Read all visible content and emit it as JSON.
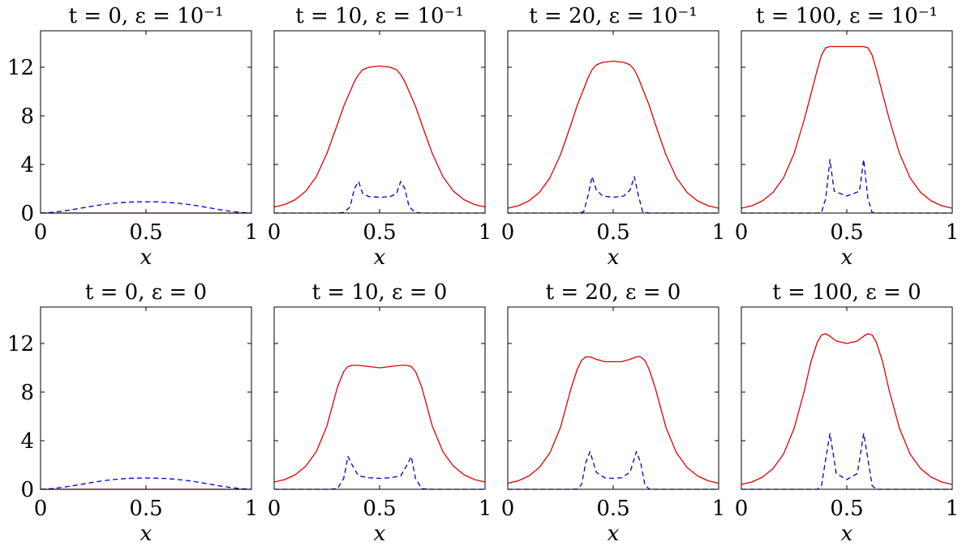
{
  "colors": {
    "solid": "#e00000",
    "dashed": "#0000cc",
    "axes": "#000000",
    "background": "#ffffff"
  },
  "figure": {
    "ylim": [
      0,
      15
    ],
    "xlim": [
      0,
      1
    ],
    "yticks": [
      0,
      4,
      8,
      12
    ],
    "ytick_labels": [
      "0",
      "4",
      "8",
      "12"
    ],
    "xticks": [
      0,
      0.5,
      1
    ],
    "xtick_labels": [
      "0",
      "0.5",
      "1"
    ],
    "xlabel": "x"
  },
  "chart_data": [
    {
      "type": "line",
      "title": "t = 0,  ε = 10⁻¹",
      "xlabel": "x",
      "ylabel": "",
      "xlim": [
        0,
        1
      ],
      "ylim": [
        0,
        15
      ],
      "x": [
        0.0,
        0.05,
        0.1,
        0.15,
        0.2,
        0.25,
        0.3,
        0.35,
        0.4,
        0.45,
        0.5,
        0.55,
        0.6,
        0.65,
        0.7,
        0.75,
        0.8,
        0.85,
        0.9,
        0.95,
        1.0
      ],
      "series": [
        {
          "style": "solid",
          "values": [
            0.0,
            0.0,
            0.0,
            0.0,
            0.0,
            0.0,
            0.0,
            0.0,
            0.0,
            0.0,
            0.0,
            0.0,
            0.0,
            0.0,
            0.0,
            0.0,
            0.0,
            0.0,
            0.0,
            0.0,
            0.0
          ]
        },
        {
          "style": "dashed",
          "values": [
            0.0,
            0.05,
            0.15,
            0.28,
            0.43,
            0.58,
            0.71,
            0.81,
            0.88,
            0.92,
            0.93,
            0.92,
            0.88,
            0.81,
            0.71,
            0.58,
            0.43,
            0.28,
            0.15,
            0.05,
            0.0
          ]
        }
      ]
    },
    {
      "type": "line",
      "title": "t = 10,  ε = 10⁻¹",
      "xlabel": "x",
      "ylabel": "",
      "xlim": [
        0,
        1
      ],
      "ylim": [
        0,
        15
      ],
      "x": [
        0.0,
        0.05,
        0.1,
        0.15,
        0.2,
        0.25,
        0.3,
        0.33,
        0.36,
        0.38,
        0.4,
        0.42,
        0.45,
        0.5,
        0.55,
        0.58,
        0.6,
        0.62,
        0.64,
        0.67,
        0.7,
        0.75,
        0.8,
        0.85,
        0.9,
        0.95,
        1.0
      ],
      "series": [
        {
          "style": "solid",
          "values": [
            0.5,
            0.7,
            1.1,
            1.8,
            3.0,
            4.9,
            7.3,
            8.8,
            10.0,
            10.8,
            11.4,
            11.8,
            12.0,
            12.1,
            12.0,
            11.8,
            11.4,
            10.8,
            10.0,
            8.8,
            7.3,
            4.9,
            3.0,
            1.8,
            1.1,
            0.7,
            0.5
          ]
        },
        {
          "style": "dashed",
          "values": [
            0.0,
            0.0,
            0.0,
            0.0,
            0.0,
            0.0,
            0.0,
            0.05,
            0.5,
            2.0,
            2.6,
            1.6,
            1.35,
            1.3,
            1.35,
            1.6,
            2.6,
            2.0,
            0.5,
            0.05,
            0.0,
            0.0,
            0.0,
            0.0,
            0.0,
            0.0,
            0.0
          ]
        }
      ]
    },
    {
      "type": "line",
      "title": "t = 20,  ε = 10⁻¹",
      "xlabel": "x",
      "ylabel": "",
      "xlim": [
        0,
        1
      ],
      "ylim": [
        0,
        15
      ],
      "x": [
        0.0,
        0.05,
        0.1,
        0.15,
        0.2,
        0.25,
        0.3,
        0.33,
        0.36,
        0.38,
        0.4,
        0.42,
        0.45,
        0.5,
        0.55,
        0.58,
        0.6,
        0.62,
        0.64,
        0.67,
        0.7,
        0.75,
        0.8,
        0.85,
        0.9,
        0.95,
        1.0
      ],
      "series": [
        {
          "style": "solid",
          "values": [
            0.4,
            0.6,
            1.0,
            1.7,
            2.9,
            4.8,
            7.3,
            8.9,
            10.2,
            11.1,
            11.8,
            12.2,
            12.4,
            12.5,
            12.4,
            12.2,
            11.8,
            11.1,
            10.2,
            8.9,
            7.3,
            4.8,
            2.9,
            1.7,
            1.0,
            0.6,
            0.4
          ]
        },
        {
          "style": "dashed",
          "values": [
            0.0,
            0.0,
            0.0,
            0.0,
            0.0,
            0.0,
            0.0,
            0.0,
            0.1,
            1.4,
            3.0,
            1.9,
            1.4,
            1.3,
            1.4,
            1.9,
            3.0,
            1.4,
            0.1,
            0.0,
            0.0,
            0.0,
            0.0,
            0.0,
            0.0,
            0.0,
            0.0
          ]
        }
      ]
    },
    {
      "type": "line",
      "title": "t = 100,  ε = 10⁻¹",
      "xlabel": "x",
      "ylabel": "",
      "xlim": [
        0,
        1
      ],
      "ylim": [
        0,
        15
      ],
      "x": [
        0.0,
        0.05,
        0.1,
        0.15,
        0.2,
        0.25,
        0.3,
        0.33,
        0.36,
        0.38,
        0.4,
        0.42,
        0.44,
        0.5,
        0.56,
        0.58,
        0.6,
        0.62,
        0.64,
        0.67,
        0.7,
        0.75,
        0.8,
        0.85,
        0.9,
        0.95,
        1.0
      ],
      "series": [
        {
          "style": "solid",
          "values": [
            0.4,
            0.6,
            1.0,
            1.7,
            2.9,
            4.9,
            7.8,
            9.8,
            11.8,
            13.0,
            13.6,
            13.7,
            13.7,
            13.7,
            13.7,
            13.7,
            13.6,
            13.0,
            11.8,
            9.8,
            7.8,
            4.9,
            2.9,
            1.7,
            1.0,
            0.6,
            0.4
          ]
        },
        {
          "style": "dashed",
          "values": [
            0.0,
            0.0,
            0.0,
            0.0,
            0.0,
            0.0,
            0.0,
            0.0,
            0.0,
            0.05,
            1.2,
            4.4,
            1.8,
            1.4,
            1.8,
            4.4,
            1.2,
            0.05,
            0.0,
            0.0,
            0.0,
            0.0,
            0.0,
            0.0,
            0.0,
            0.0,
            0.0
          ]
        }
      ]
    },
    {
      "type": "line",
      "title": "t = 0,  ε = 0",
      "xlabel": "x",
      "ylabel": "",
      "xlim": [
        0,
        1
      ],
      "ylim": [
        0,
        15
      ],
      "x": [
        0.0,
        0.05,
        0.1,
        0.15,
        0.2,
        0.25,
        0.3,
        0.35,
        0.4,
        0.45,
        0.5,
        0.55,
        0.6,
        0.65,
        0.7,
        0.75,
        0.8,
        0.85,
        0.9,
        0.95,
        1.0
      ],
      "series": [
        {
          "style": "solid",
          "values": [
            0.0,
            0.0,
            0.0,
            0.0,
            0.0,
            0.0,
            0.0,
            0.0,
            0.0,
            0.0,
            0.0,
            0.0,
            0.0,
            0.0,
            0.0,
            0.0,
            0.0,
            0.0,
            0.0,
            0.0,
            0.0
          ]
        },
        {
          "style": "dashed",
          "values": [
            0.0,
            0.05,
            0.15,
            0.28,
            0.43,
            0.58,
            0.71,
            0.81,
            0.88,
            0.92,
            0.93,
            0.92,
            0.88,
            0.81,
            0.71,
            0.58,
            0.43,
            0.28,
            0.15,
            0.05,
            0.0
          ]
        }
      ]
    },
    {
      "type": "line",
      "title": "t = 10,  ε = 0",
      "xlabel": "x",
      "ylabel": "",
      "xlim": [
        0,
        1
      ],
      "ylim": [
        0,
        15
      ],
      "x": [
        0.0,
        0.05,
        0.1,
        0.15,
        0.2,
        0.25,
        0.3,
        0.33,
        0.35,
        0.37,
        0.4,
        0.45,
        0.5,
        0.55,
        0.6,
        0.63,
        0.65,
        0.67,
        0.7,
        0.75,
        0.8,
        0.85,
        0.9,
        0.95,
        1.0
      ],
      "series": [
        {
          "style": "solid",
          "values": [
            0.6,
            0.8,
            1.2,
            1.9,
            3.1,
            5.2,
            8.4,
            9.7,
            10.1,
            10.2,
            10.2,
            10.1,
            10.0,
            10.1,
            10.2,
            10.2,
            10.1,
            9.7,
            8.4,
            5.2,
            3.1,
            1.9,
            1.2,
            0.8,
            0.6
          ]
        },
        {
          "style": "dashed",
          "values": [
            0.0,
            0.0,
            0.0,
            0.0,
            0.0,
            0.0,
            0.05,
            0.9,
            2.7,
            2.0,
            1.1,
            0.95,
            0.9,
            0.95,
            1.1,
            2.0,
            2.7,
            0.9,
            0.05,
            0.0,
            0.0,
            0.0,
            0.0,
            0.0,
            0.0
          ]
        }
      ]
    },
    {
      "type": "line",
      "title": "t = 20,  ε = 0",
      "xlabel": "x",
      "ylabel": "",
      "xlim": [
        0,
        1
      ],
      "ylim": [
        0,
        15
      ],
      "x": [
        0.0,
        0.05,
        0.1,
        0.15,
        0.2,
        0.25,
        0.3,
        0.33,
        0.35,
        0.37,
        0.39,
        0.42,
        0.46,
        0.5,
        0.54,
        0.58,
        0.61,
        0.63,
        0.65,
        0.67,
        0.7,
        0.75,
        0.8,
        0.85,
        0.9,
        0.95,
        1.0
      ],
      "series": [
        {
          "style": "solid",
          "values": [
            0.5,
            0.7,
            1.1,
            1.8,
            3.0,
            5.1,
            8.3,
            9.9,
            10.6,
            10.9,
            10.9,
            10.7,
            10.5,
            10.5,
            10.5,
            10.7,
            10.9,
            10.9,
            10.6,
            9.9,
            8.3,
            5.1,
            3.0,
            1.8,
            1.1,
            0.7,
            0.5
          ]
        },
        {
          "style": "dashed",
          "values": [
            0.0,
            0.0,
            0.0,
            0.0,
            0.0,
            0.0,
            0.0,
            0.02,
            0.4,
            2.2,
            3.1,
            1.4,
            0.95,
            0.9,
            0.95,
            1.4,
            3.1,
            2.2,
            0.4,
            0.02,
            0.0,
            0.0,
            0.0,
            0.0,
            0.0,
            0.0,
            0.0
          ]
        }
      ]
    },
    {
      "type": "line",
      "title": "t = 100,  ε = 0",
      "xlabel": "x",
      "ylabel": "",
      "xlim": [
        0,
        1
      ],
      "ylim": [
        0,
        15
      ],
      "x": [
        0.0,
        0.05,
        0.1,
        0.15,
        0.2,
        0.25,
        0.3,
        0.33,
        0.36,
        0.38,
        0.4,
        0.42,
        0.45,
        0.5,
        0.55,
        0.58,
        0.6,
        0.62,
        0.64,
        0.67,
        0.7,
        0.75,
        0.8,
        0.85,
        0.9,
        0.95,
        1.0
      ],
      "series": [
        {
          "style": "solid",
          "values": [
            0.4,
            0.6,
            1.0,
            1.7,
            2.9,
            5.0,
            8.2,
            10.5,
            12.1,
            12.7,
            12.8,
            12.6,
            12.2,
            12.0,
            12.2,
            12.6,
            12.8,
            12.7,
            12.1,
            10.5,
            8.2,
            5.0,
            2.9,
            1.7,
            1.0,
            0.6,
            0.4
          ]
        },
        {
          "style": "dashed",
          "values": [
            0.0,
            0.0,
            0.0,
            0.0,
            0.0,
            0.0,
            0.0,
            0.0,
            0.0,
            0.3,
            2.5,
            4.6,
            1.3,
            0.8,
            1.3,
            4.6,
            2.5,
            0.3,
            0.0,
            0.0,
            0.0,
            0.0,
            0.0,
            0.0,
            0.0,
            0.0,
            0.0
          ]
        }
      ]
    }
  ]
}
